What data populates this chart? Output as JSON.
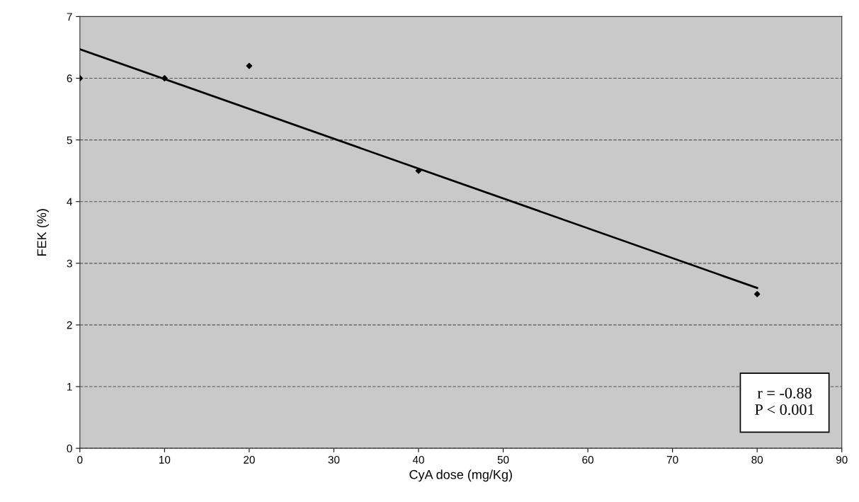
{
  "chart_data": {
    "type": "scatter",
    "xlabel": "CyA dose (mg/Kg)",
    "ylabel": "FEK (%)",
    "xlim": [
      0,
      90
    ],
    "xticks": [
      0,
      10,
      20,
      30,
      40,
      50,
      60,
      70,
      80,
      90
    ],
    "ylim": [
      0,
      7
    ],
    "yticks": [
      0,
      1,
      2,
      3,
      4,
      5,
      6,
      7
    ],
    "grid": "y",
    "marker": "diamond",
    "series": [
      {
        "color": "#000000",
        "x": [
          0,
          10,
          20,
          40,
          80
        ],
        "values": [
          6.0,
          6.0,
          6.2,
          4.5,
          2.5
        ]
      },
      {
        "type": "line",
        "color": "#000000",
        "x": [
          0,
          80
        ],
        "values": [
          6.47,
          2.6
        ],
        "marker": "none",
        "line_style": "solid"
      }
    ],
    "annotations": [
      "r = -0.88\nP < 0.001"
    ]
  }
}
